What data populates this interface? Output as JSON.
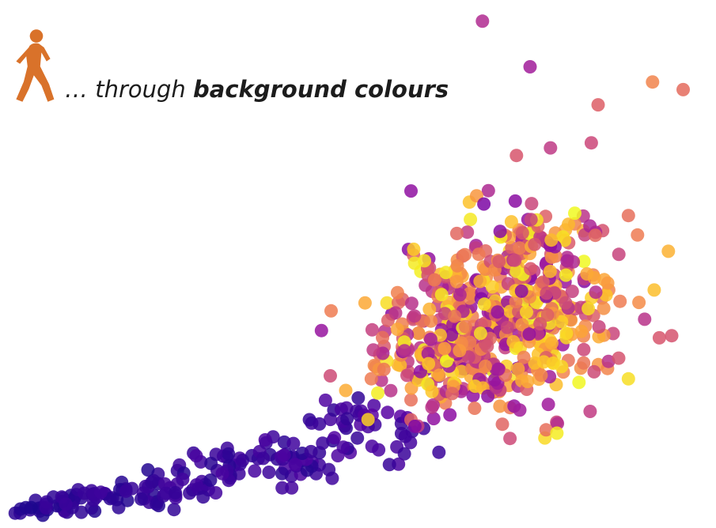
{
  "header": {
    "prefix": "… through",
    "emphasis": "background colours",
    "icon": "pedestrian-icon",
    "icon_color": "#d9722a"
  },
  "chart_data": {
    "type": "scatter",
    "title": "",
    "xlabel": "",
    "ylabel": "",
    "xlim": [
      0,
      100
    ],
    "ylim": [
      0,
      100
    ],
    "axes_visible": false,
    "grid": false,
    "colormap": [
      "#0d0887",
      "#46039f",
      "#7201a8",
      "#9c179e",
      "#bd3786",
      "#d8576b",
      "#ed7953",
      "#fb9f3a",
      "#fdca26",
      "#f0f921"
    ],
    "point_alpha": 0.85,
    "outliers": [
      {
        "x": 68.0,
        "y": 98.0,
        "c": 0.4
      },
      {
        "x": 75.0,
        "y": 89.0,
        "c": 0.35
      },
      {
        "x": 93.0,
        "y": 86.0,
        "c": 0.7
      },
      {
        "x": 97.5,
        "y": 84.5,
        "c": 0.62
      },
      {
        "x": 85.0,
        "y": 81.5,
        "c": 0.58
      },
      {
        "x": 84.0,
        "y": 74.0,
        "c": 0.5
      },
      {
        "x": 78.0,
        "y": 73.0,
        "c": 0.45
      },
      {
        "x": 73.0,
        "y": 71.5,
        "c": 0.55
      },
      {
        "x": 57.5,
        "y": 64.5,
        "c": 0.3
      },
      {
        "x": 94.0,
        "y": 35.5,
        "c": 0.55
      },
      {
        "x": 91.0,
        "y": 42.5,
        "c": 0.72
      }
    ],
    "clusters": [
      {
        "x": 3.5,
        "y": 1.8,
        "sx": 2.0,
        "sy": 1.0,
        "n": 16,
        "c": [
          0.02,
          0.07
        ]
      },
      {
        "x": 9.0,
        "y": 3.5,
        "sx": 3.2,
        "sy": 1.2,
        "n": 30,
        "c": [
          0.04,
          0.1
        ]
      },
      {
        "x": 17.5,
        "y": 4.8,
        "sx": 3.2,
        "sy": 1.6,
        "n": 30,
        "c": [
          0.04,
          0.1
        ]
      },
      {
        "x": 24.0,
        "y": 7.5,
        "sx": 3.0,
        "sy": 2.2,
        "n": 22,
        "c": [
          0.05,
          0.11
        ]
      },
      {
        "x": 32.0,
        "y": 10.5,
        "sx": 3.5,
        "sy": 2.6,
        "n": 26,
        "c": [
          0.05,
          0.12
        ]
      },
      {
        "x": 41.0,
        "y": 12.0,
        "sx": 3.5,
        "sy": 3.0,
        "n": 34,
        "c": [
          0.05,
          0.13
        ]
      },
      {
        "x": 47.5,
        "y": 20.0,
        "sx": 3.0,
        "sy": 3.0,
        "n": 28,
        "c": [
          0.06,
          0.14
        ]
      },
      {
        "x": 55.0,
        "y": 16.0,
        "sx": 3.0,
        "sy": 2.5,
        "n": 18,
        "c": [
          0.08,
          0.18
        ]
      },
      {
        "x": 63.0,
        "y": 32.0,
        "sx": 6.0,
        "sy": 6.0,
        "n": 190,
        "c": [
          0.25,
          1.0
        ]
      },
      {
        "x": 72.0,
        "y": 39.0,
        "sx": 7.5,
        "sy": 8.5,
        "n": 320,
        "c": [
          0.25,
          1.0
        ]
      },
      {
        "x": 76.0,
        "y": 52.0,
        "sx": 6.5,
        "sy": 6.0,
        "n": 110,
        "c": [
          0.25,
          1.0
        ]
      }
    ]
  }
}
